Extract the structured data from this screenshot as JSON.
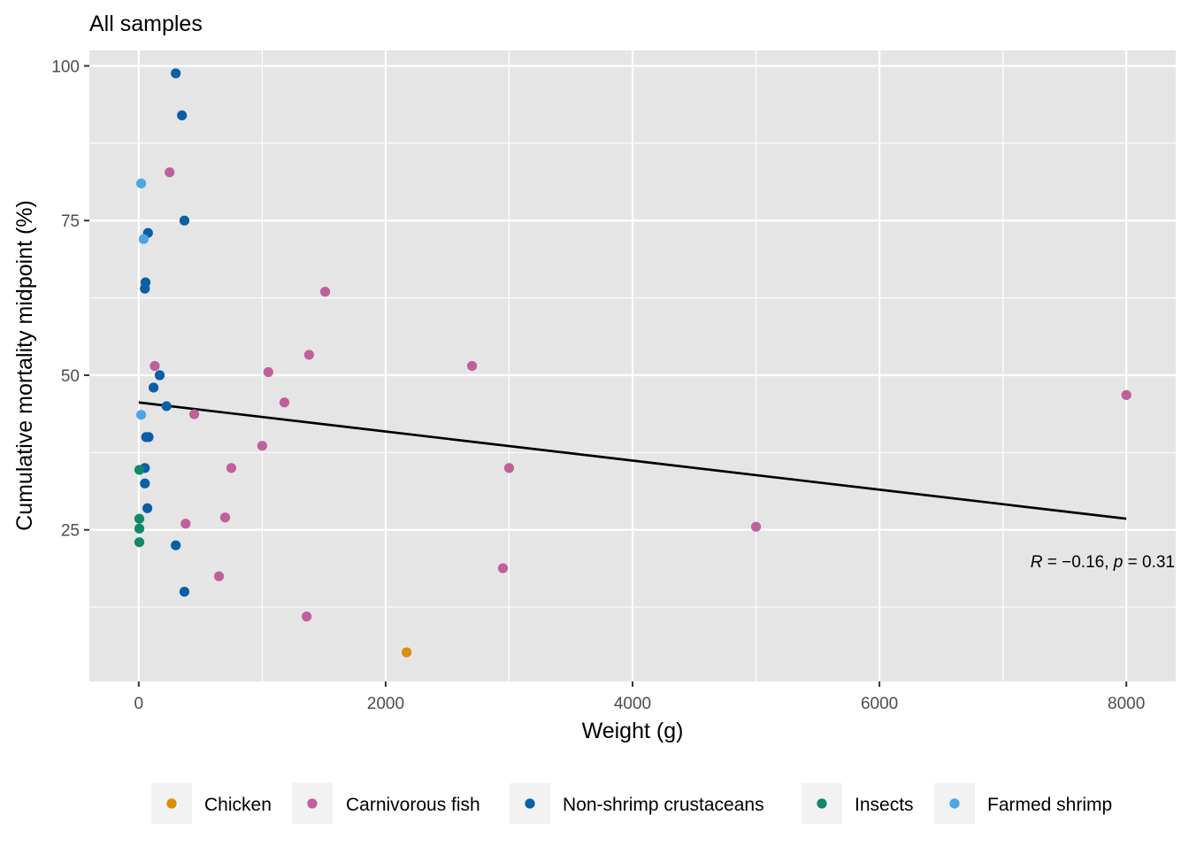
{
  "chart_data": {
    "type": "scatter",
    "title": "All samples",
    "xlabel": "Weight (g)",
    "ylabel": "Cumulative mortality midpoint (%)",
    "xlim": [
      -400,
      8400
    ],
    "ylim": [
      0.5,
      102.5
    ],
    "x_ticks": [
      0,
      2000,
      4000,
      6000,
      8000
    ],
    "y_ticks": [
      25,
      50,
      75,
      100
    ],
    "x_tick_labels": [
      "0",
      "2000",
      "4000",
      "6000",
      "8000"
    ],
    "y_tick_labels": [
      "25",
      "50",
      "75",
      "100"
    ],
    "grid": true,
    "legend_position": "bottom",
    "annotation": {
      "r_symbol": "R",
      "r_text": " = −0.16, ",
      "p_symbol": "p",
      "p_text": " = 0.31"
    },
    "trend_line": {
      "x": [
        0,
        8000
      ],
      "y": [
        45.6,
        26.8
      ],
      "color": "#000000"
    },
    "series": [
      {
        "name": "Chicken",
        "color": "#DB8E00",
        "points": [
          [
            2170,
            5.2
          ]
        ]
      },
      {
        "name": "Carnivorous fish",
        "color": "#C0609B",
        "points": [
          [
            250,
            82.8
          ],
          [
            1510,
            63.5
          ],
          [
            1380,
            53.3
          ],
          [
            2700,
            51.5
          ],
          [
            130,
            51.5
          ],
          [
            1050,
            50.5
          ],
          [
            1180,
            45.6
          ],
          [
            8000,
            46.8
          ],
          [
            450,
            43.7
          ],
          [
            1000,
            38.6
          ],
          [
            750,
            35
          ],
          [
            3000,
            35
          ],
          [
            700,
            27
          ],
          [
            380,
            26
          ],
          [
            5000,
            25.5
          ],
          [
            2950,
            18.8
          ],
          [
            650,
            17.5
          ],
          [
            1360,
            11
          ]
        ]
      },
      {
        "name": "Non-shrimp crustaceans",
        "color": "#0A5FA5",
        "points": [
          [
            300,
            98.8
          ],
          [
            350,
            92
          ],
          [
            370,
            75
          ],
          [
            75,
            73
          ],
          [
            55,
            65
          ],
          [
            50,
            64
          ],
          [
            170,
            50
          ],
          [
            120,
            48
          ],
          [
            225,
            45
          ],
          [
            60,
            40
          ],
          [
            80,
            40
          ],
          [
            50,
            35
          ],
          [
            50,
            32.5
          ],
          [
            70,
            28.5
          ],
          [
            300,
            22.5
          ],
          [
            370,
            15
          ]
        ]
      },
      {
        "name": "Insects",
        "color": "#13876A",
        "points": [
          [
            5,
            34.7
          ],
          [
            5,
            26.8
          ],
          [
            5,
            25.2
          ],
          [
            5,
            23
          ]
        ]
      },
      {
        "name": "Farmed shrimp",
        "color": "#4BA6E6",
        "points": [
          [
            20,
            81
          ],
          [
            40,
            72
          ],
          [
            20,
            43.6
          ]
        ]
      }
    ],
    "panel_background": "#E5E5E5",
    "gridline_color": "#FFFFFF"
  }
}
